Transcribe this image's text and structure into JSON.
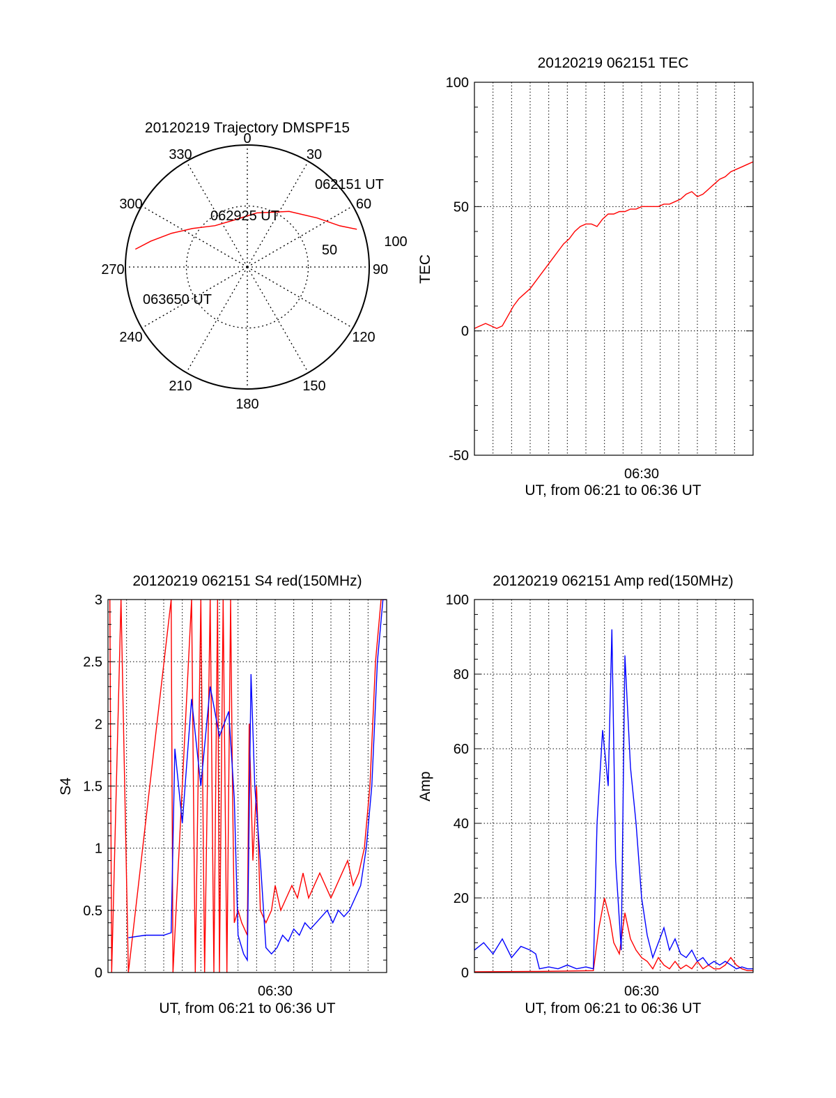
{
  "chart_data": [
    {
      "type": "polar",
      "title": "20120219 Trajectory DMSPF15",
      "angle_labels": [
        "0",
        "30",
        "60",
        "90",
        "120",
        "150",
        "180",
        "210",
        "240",
        "270",
        "300",
        "330"
      ],
      "radial_labels": [
        "50",
        "100"
      ],
      "rlim": [
        0,
        100
      ],
      "grid": true,
      "series": [
        {
          "color": "#ff0000",
          "points": [
            {
              "az": 71,
              "r": 95
            },
            {
              "az": 66,
              "r": 83
            },
            {
              "az": 55,
              "r": 70
            },
            {
              "az": 37,
              "r": 57
            },
            {
              "az": 10,
              "r": 45
            },
            {
              "az": -15,
              "r": 40
            },
            {
              "az": -38,
              "r": 43
            },
            {
              "az": -55,
              "r": 55
            },
            {
              "az": -66,
              "r": 68
            },
            {
              "az": -75,
              "r": 82
            },
            {
              "az": -81,
              "r": 93
            }
          ]
        }
      ],
      "annotations": [
        "062151 UT",
        "062925 UT",
        "063650 UT"
      ]
    },
    {
      "type": "line",
      "title": "20120219 062151 TEC",
      "xlabel": "UT, from 06:21 to 06:36 UT",
      "ylabel": "TEC",
      "x_tick_labels": [
        "06:30"
      ],
      "y_tick_labels": [
        "100",
        "50",
        "0",
        "-50"
      ],
      "xlim": [
        0,
        15
      ],
      "ylim": [
        -50,
        100
      ],
      "grid": true,
      "series": [
        {
          "color": "#ff0000",
          "x": [
            0.0,
            0.3,
            0.6,
            0.9,
            1.2,
            1.5,
            1.8,
            2.1,
            2.4,
            2.7,
            3.0,
            3.3,
            3.6,
            3.9,
            4.2,
            4.5,
            4.8,
            5.1,
            5.4,
            5.7,
            6.0,
            6.3,
            6.6,
            6.9,
            7.2,
            7.5,
            7.8,
            8.1,
            8.4,
            8.7,
            9.0,
            9.3,
            9.6,
            9.9,
            10.2,
            10.5,
            10.8,
            11.1,
            11.4,
            11.7,
            12.0,
            12.3,
            12.6,
            12.9,
            13.2,
            13.5,
            13.8,
            14.1,
            14.4,
            14.7,
            15.0
          ],
          "values": [
            1,
            2,
            3,
            2,
            1,
            2,
            6,
            10,
            13,
            15,
            17,
            20,
            23,
            26,
            29,
            32,
            35,
            37,
            40,
            42,
            43,
            43,
            42,
            45,
            47,
            47,
            48,
            48,
            49,
            49,
            50,
            50,
            50,
            50,
            51,
            51,
            52,
            53,
            55,
            56,
            54,
            55,
            57,
            59,
            61,
            62,
            64,
            65,
            66,
            67,
            68
          ]
        }
      ]
    },
    {
      "type": "line",
      "title": "20120219 062151 S4 red(150MHz)",
      "xlabel": "UT, from 06:21 to 06:36 UT",
      "ylabel": "S4",
      "x_tick_labels": [
        "06:30"
      ],
      "y_tick_labels": [
        "3",
        "2.5",
        "2",
        "1.5",
        "1",
        "0.5",
        "0"
      ],
      "xlim": [
        0,
        15
      ],
      "ylim": [
        0,
        3
      ],
      "grid": true,
      "series": [
        {
          "color": "#ff0000",
          "x": [
            0.1,
            0.2,
            0.7,
            1.1,
            3.4,
            3.5,
            4.5,
            4.7,
            5.0,
            5.2,
            5.5,
            5.7,
            5.9,
            6.0,
            6.2,
            6.4,
            6.6,
            6.7,
            6.8,
            7.0,
            7.2,
            7.5,
            7.6,
            7.8,
            8.0,
            8.2,
            8.5,
            8.8,
            9.0,
            9.3,
            9.6,
            9.9,
            10.2,
            10.5,
            10.8,
            11.1,
            11.4,
            11.7,
            12.0,
            12.3,
            12.6,
            12.9,
            13.2,
            13.5,
            13.8,
            14.1,
            14.4,
            14.7,
            15.0
          ],
          "values": [
            3,
            0,
            3,
            0,
            3,
            0,
            3,
            0,
            3,
            0,
            3,
            0,
            3,
            0,
            3,
            0,
            3,
            1.5,
            0.4,
            0.5,
            0.4,
            0.3,
            2.0,
            0.9,
            1.5,
            0.5,
            0.4,
            0.5,
            0.7,
            0.5,
            0.6,
            0.7,
            0.6,
            0.8,
            0.6,
            0.7,
            0.8,
            0.7,
            0.6,
            0.7,
            0.8,
            0.9,
            0.7,
            0.8,
            1.0,
            1.5,
            2.5,
            3.0,
            3.0
          ]
        },
        {
          "color": "#0000ff",
          "x": [
            1.1,
            2.0,
            3.0,
            3.4,
            3.6,
            4.0,
            4.5,
            5.0,
            5.5,
            6.0,
            6.5,
            6.8,
            7.0,
            7.3,
            7.5,
            7.7,
            7.9,
            8.2,
            8.5,
            8.8,
            9.1,
            9.4,
            9.7,
            10.0,
            10.3,
            10.6,
            10.9,
            11.2,
            11.5,
            11.8,
            12.1,
            12.4,
            12.7,
            13.0,
            13.3,
            13.6,
            13.9,
            14.2,
            14.5,
            14.8,
            15.0
          ],
          "values": [
            0.28,
            0.3,
            0.3,
            0.32,
            1.8,
            1.2,
            2.2,
            1.5,
            2.3,
            1.9,
            2.1,
            1.4,
            0.3,
            0.15,
            0.1,
            2.4,
            1.5,
            0.9,
            0.2,
            0.15,
            0.2,
            0.3,
            0.25,
            0.35,
            0.3,
            0.4,
            0.35,
            0.4,
            0.45,
            0.5,
            0.4,
            0.5,
            0.45,
            0.5,
            0.6,
            0.7,
            1.0,
            1.5,
            2.5,
            3.0,
            3.0
          ]
        }
      ]
    },
    {
      "type": "line",
      "title": "20120219 062151 Amp red(150MHz)",
      "xlabel": "UT, from 06:21 to 06:36 UT",
      "ylabel": "Amp",
      "x_tick_labels": [
        "06:30"
      ],
      "y_tick_labels": [
        "100",
        "80",
        "60",
        "40",
        "20",
        "0"
      ],
      "xlim": [
        0,
        15
      ],
      "ylim": [
        0,
        100
      ],
      "grid": true,
      "series": [
        {
          "color": "#ff0000",
          "x": [
            0.0,
            3.4,
            6.4,
            6.7,
            7.0,
            7.3,
            7.5,
            7.8,
            8.1,
            8.4,
            8.7,
            9.0,
            9.3,
            9.6,
            9.9,
            10.2,
            10.5,
            10.8,
            11.1,
            11.4,
            11.7,
            12.0,
            12.3,
            12.6,
            12.9,
            13.2,
            13.5,
            13.8,
            14.1,
            14.4,
            14.7,
            15.0
          ],
          "values": [
            0.2,
            0.3,
            0.5,
            12,
            20,
            14,
            8,
            5,
            16,
            9,
            6,
            4,
            3,
            1,
            4,
            2,
            1,
            3,
            1,
            2,
            1,
            3,
            1,
            2,
            1,
            1,
            2,
            4,
            2,
            1,
            0.5,
            0.5
          ]
        },
        {
          "color": "#0000ff",
          "x": [
            0.0,
            0.5,
            1.0,
            1.5,
            2.0,
            2.5,
            3.0,
            3.3,
            3.5,
            4.0,
            4.5,
            5.0,
            5.5,
            6.0,
            6.4,
            6.6,
            6.9,
            7.2,
            7.4,
            7.6,
            7.9,
            8.1,
            8.4,
            8.7,
            9.0,
            9.3,
            9.6,
            9.9,
            10.2,
            10.5,
            10.8,
            11.1,
            11.4,
            11.7,
            12.0,
            12.3,
            12.6,
            12.9,
            13.2,
            13.5,
            13.8,
            14.1,
            14.4,
            14.7,
            15.0
          ],
          "values": [
            6,
            8,
            5,
            9,
            4,
            7,
            6,
            5,
            1,
            1.5,
            1,
            2,
            1,
            1.5,
            1,
            40,
            65,
            50,
            92,
            30,
            6,
            85,
            55,
            40,
            20,
            10,
            4,
            8,
            12,
            6,
            9,
            5,
            4,
            6,
            3,
            4,
            2,
            3,
            2,
            3,
            2,
            1,
            1.5,
            1,
            1
          ]
        }
      ]
    }
  ]
}
